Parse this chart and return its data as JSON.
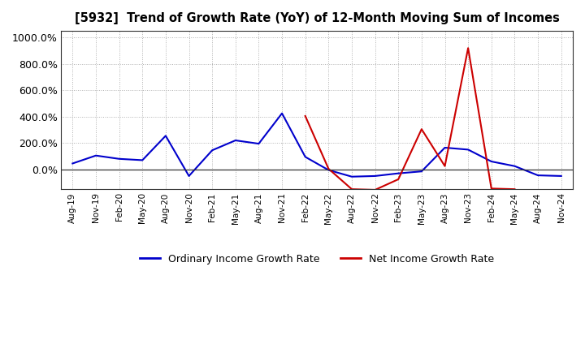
{
  "title": "[5932]  Trend of Growth Rate (YoY) of 12-Month Moving Sum of Incomes",
  "x_labels": [
    "Aug-19",
    "Nov-19",
    "Feb-20",
    "May-20",
    "Aug-20",
    "Nov-20",
    "Feb-21",
    "May-21",
    "Aug-21",
    "Nov-21",
    "Feb-22",
    "May-22",
    "Aug-22",
    "Nov-22",
    "Feb-23",
    "May-23",
    "Aug-23",
    "Nov-23",
    "Feb-24",
    "May-24",
    "Aug-24",
    "Nov-24"
  ],
  "ordinary_income": [
    0.45,
    1.05,
    0.8,
    0.7,
    2.55,
    -0.5,
    1.45,
    2.2,
    1.95,
    4.25,
    0.95,
    -0.05,
    -0.55,
    -0.5,
    -0.3,
    -0.15,
    1.65,
    1.5,
    0.6,
    0.25,
    -0.45,
    -0.5
  ],
  "net_income": [
    null,
    null,
    null,
    null,
    null,
    null,
    null,
    null,
    null,
    null,
    4.05,
    0.05,
    -1.5,
    -1.55,
    -0.75,
    3.05,
    0.25,
    9.2,
    -1.45,
    -1.5,
    null,
    null
  ],
  "ordinary_color": "#0000cc",
  "net_color": "#cc0000",
  "ylim_min": -1.5,
  "ylim_max": 10.5,
  "ytick_vals": [
    0,
    2,
    4,
    6,
    8,
    10
  ],
  "ytick_labels": [
    "0.0%",
    "200.0%",
    "400.0%",
    "600.0%",
    "800.0%",
    "1000.0%"
  ],
  "legend_ordinary": "Ordinary Income Growth Rate",
  "legend_net": "Net Income Growth Rate",
  "background_color": "#ffffff",
  "grid_color": "#b0b0b0"
}
